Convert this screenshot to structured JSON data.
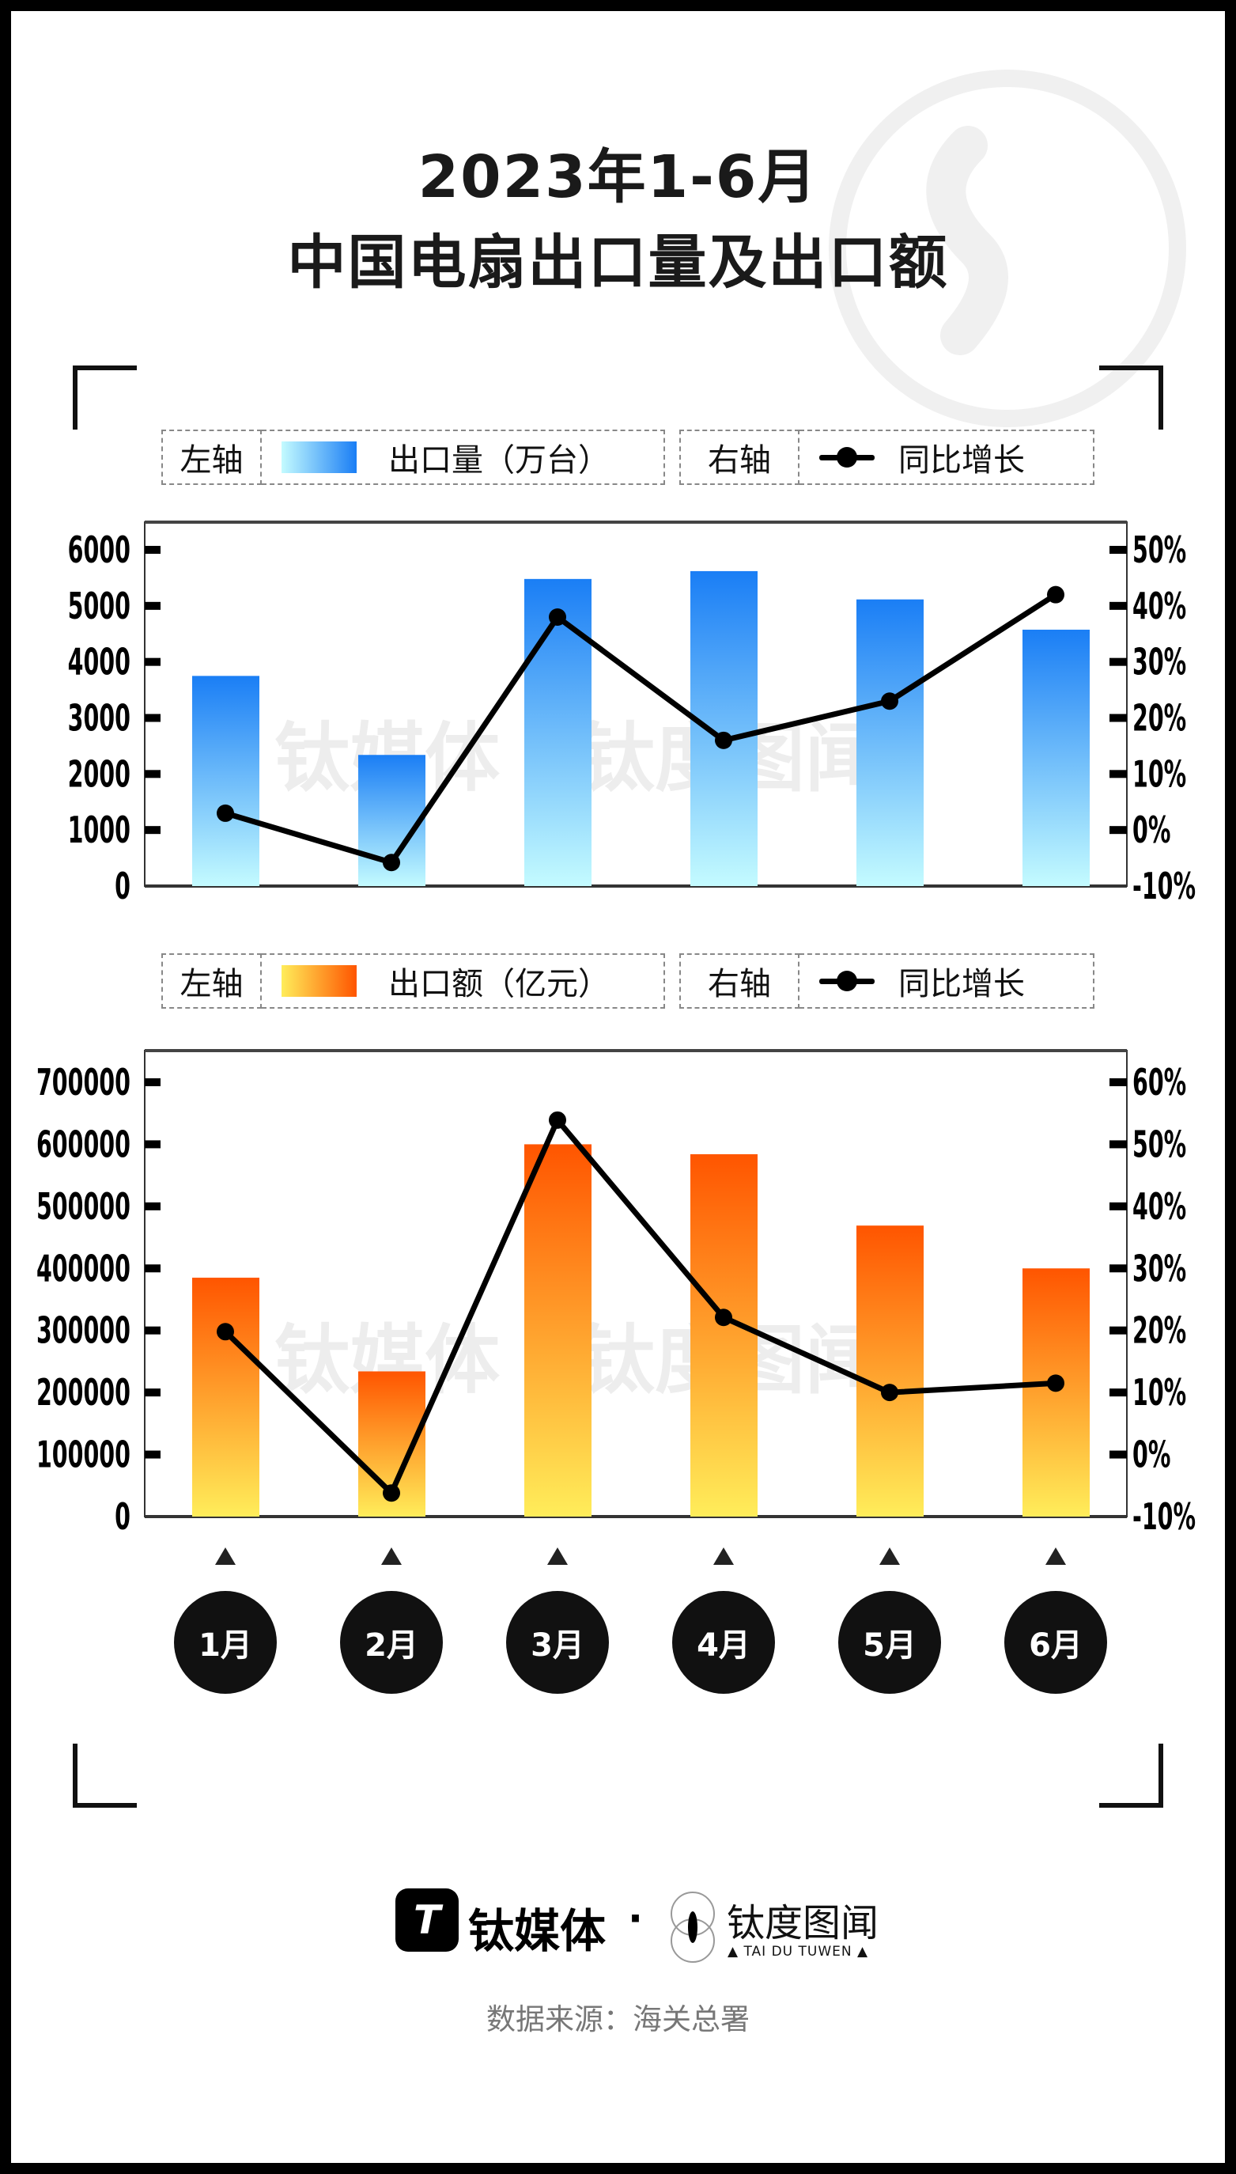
{
  "title": {
    "line1": "2023年1-6月",
    "line2": "中国电扇出口量及出口额"
  },
  "legend_top": {
    "left_axis": "左轴",
    "series": "出口量（万台）",
    "right_axis": "右轴",
    "line": "同比增长"
  },
  "legend_bottom": {
    "left_axis": "左轴",
    "series": "出口额（亿元）",
    "right_axis": "右轴",
    "line": "同比增长"
  },
  "months": [
    "1月",
    "2月",
    "3月",
    "4月",
    "5月",
    "6月"
  ],
  "footer": {
    "brand1": "钛媒体",
    "separator": "·",
    "brand2": "钛度图闻",
    "brand2_en": "▲ TAI DU TUWEN ▲",
    "source": "数据来源：海关总署"
  },
  "colors": {
    "bar1_top": "#1a7ef5",
    "bar1_bottom": "#c4fbff",
    "bar2_top": "#ff5500",
    "bar2_bottom": "#ffed5a",
    "line": "#000000"
  },
  "chart_data": [
    {
      "type": "bar+line",
      "categories": [
        "1月",
        "2月",
        "3月",
        "4月",
        "5月",
        "6月"
      ],
      "series": [
        {
          "name": "出口量（万台）",
          "axis": "left",
          "type": "bar",
          "values": [
            3750,
            2340,
            5480,
            5620,
            5115,
            4575
          ]
        },
        {
          "name": "同比增长",
          "axis": "right",
          "type": "line",
          "values": [
            3,
            -5.8,
            38,
            16,
            23,
            42
          ]
        }
      ],
      "left_axis": {
        "ylim": [
          0,
          6000
        ],
        "ticks": [
          "0",
          "1000",
          "2000",
          "3000",
          "4000",
          "5000",
          "6000"
        ]
      },
      "right_axis": {
        "ylim": [
          -10,
          50
        ],
        "ticks": [
          "-10%",
          "0%",
          "10%",
          "20%",
          "30%",
          "40%",
          "50%"
        ]
      }
    },
    {
      "type": "bar+line",
      "categories": [
        "1月",
        "2月",
        "3月",
        "4月",
        "5月",
        "6月"
      ],
      "series": [
        {
          "name": "出口额（亿元）",
          "axis": "left",
          "type": "bar",
          "values": [
            385000,
            234000,
            600000,
            584000,
            469000,
            400000
          ]
        },
        {
          "name": "同比增长",
          "axis": "right",
          "type": "line",
          "values": [
            19.8,
            -6.2,
            53.9,
            22.1,
            10,
            11.5
          ]
        }
      ],
      "left_axis": {
        "ylim": [
          0,
          700000
        ],
        "ticks": [
          "0",
          "100000",
          "200000",
          "300000",
          "400000",
          "500000",
          "600000",
          "700000"
        ]
      },
      "right_axis": {
        "ylim": [
          -10,
          60
        ],
        "ticks": [
          "-10%",
          "0%",
          "10%",
          "20%",
          "30%",
          "40%",
          "50%",
          "60%"
        ]
      }
    }
  ]
}
